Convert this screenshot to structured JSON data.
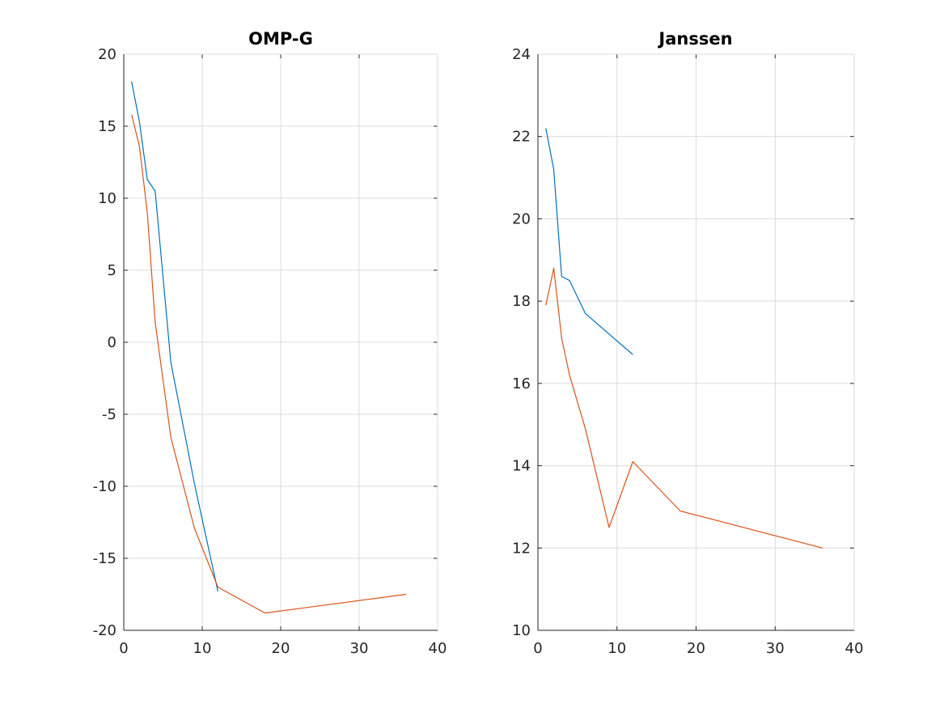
{
  "chart_data": [
    {
      "type": "line",
      "title": "OMP-G",
      "xlabel": "",
      "ylabel": "",
      "xlim": [
        0,
        40
      ],
      "ylim": [
        -20,
        20
      ],
      "xticks": [
        "0",
        "10",
        "20",
        "30",
        "40"
      ],
      "yticks": [
        "20",
        "15",
        "10",
        "5",
        "0",
        "-5",
        "-10",
        "-15",
        "-20"
      ],
      "grid": true,
      "series": [
        {
          "color": "#0072BD",
          "x": [
            1,
            2,
            3,
            4,
            6,
            9,
            12
          ],
          "y": [
            18.1,
            15.3,
            11.3,
            10.5,
            -1.4,
            -9.8,
            -17.3
          ]
        },
        {
          "color": "#D95319",
          "x": [
            1,
            2,
            3,
            4,
            6,
            9,
            12,
            18,
            36
          ],
          "y": [
            15.8,
            13.6,
            9.0,
            1.4,
            -6.6,
            -12.9,
            -17.0,
            -18.8,
            -17.5
          ]
        }
      ]
    },
    {
      "type": "line",
      "title": "Janssen",
      "xlabel": "",
      "ylabel": "",
      "xlim": [
        0,
        40
      ],
      "ylim": [
        10,
        24
      ],
      "xticks": [
        "0",
        "10",
        "20",
        "30",
        "40"
      ],
      "yticks": [
        "24",
        "22",
        "20",
        "18",
        "16",
        "14",
        "12",
        "10"
      ],
      "grid": true,
      "series": [
        {
          "color": "#0072BD",
          "x": [
            1,
            2,
            3,
            4,
            6,
            9,
            12
          ],
          "y": [
            22.2,
            21.2,
            18.6,
            18.5,
            17.7,
            17.2,
            16.7
          ]
        },
        {
          "color": "#D95319",
          "x": [
            1,
            2,
            3,
            4,
            6,
            9,
            12,
            18,
            36
          ],
          "y": [
            17.9,
            18.8,
            17.1,
            16.2,
            14.9,
            12.5,
            14.1,
            12.9,
            12.0
          ]
        }
      ]
    }
  ]
}
